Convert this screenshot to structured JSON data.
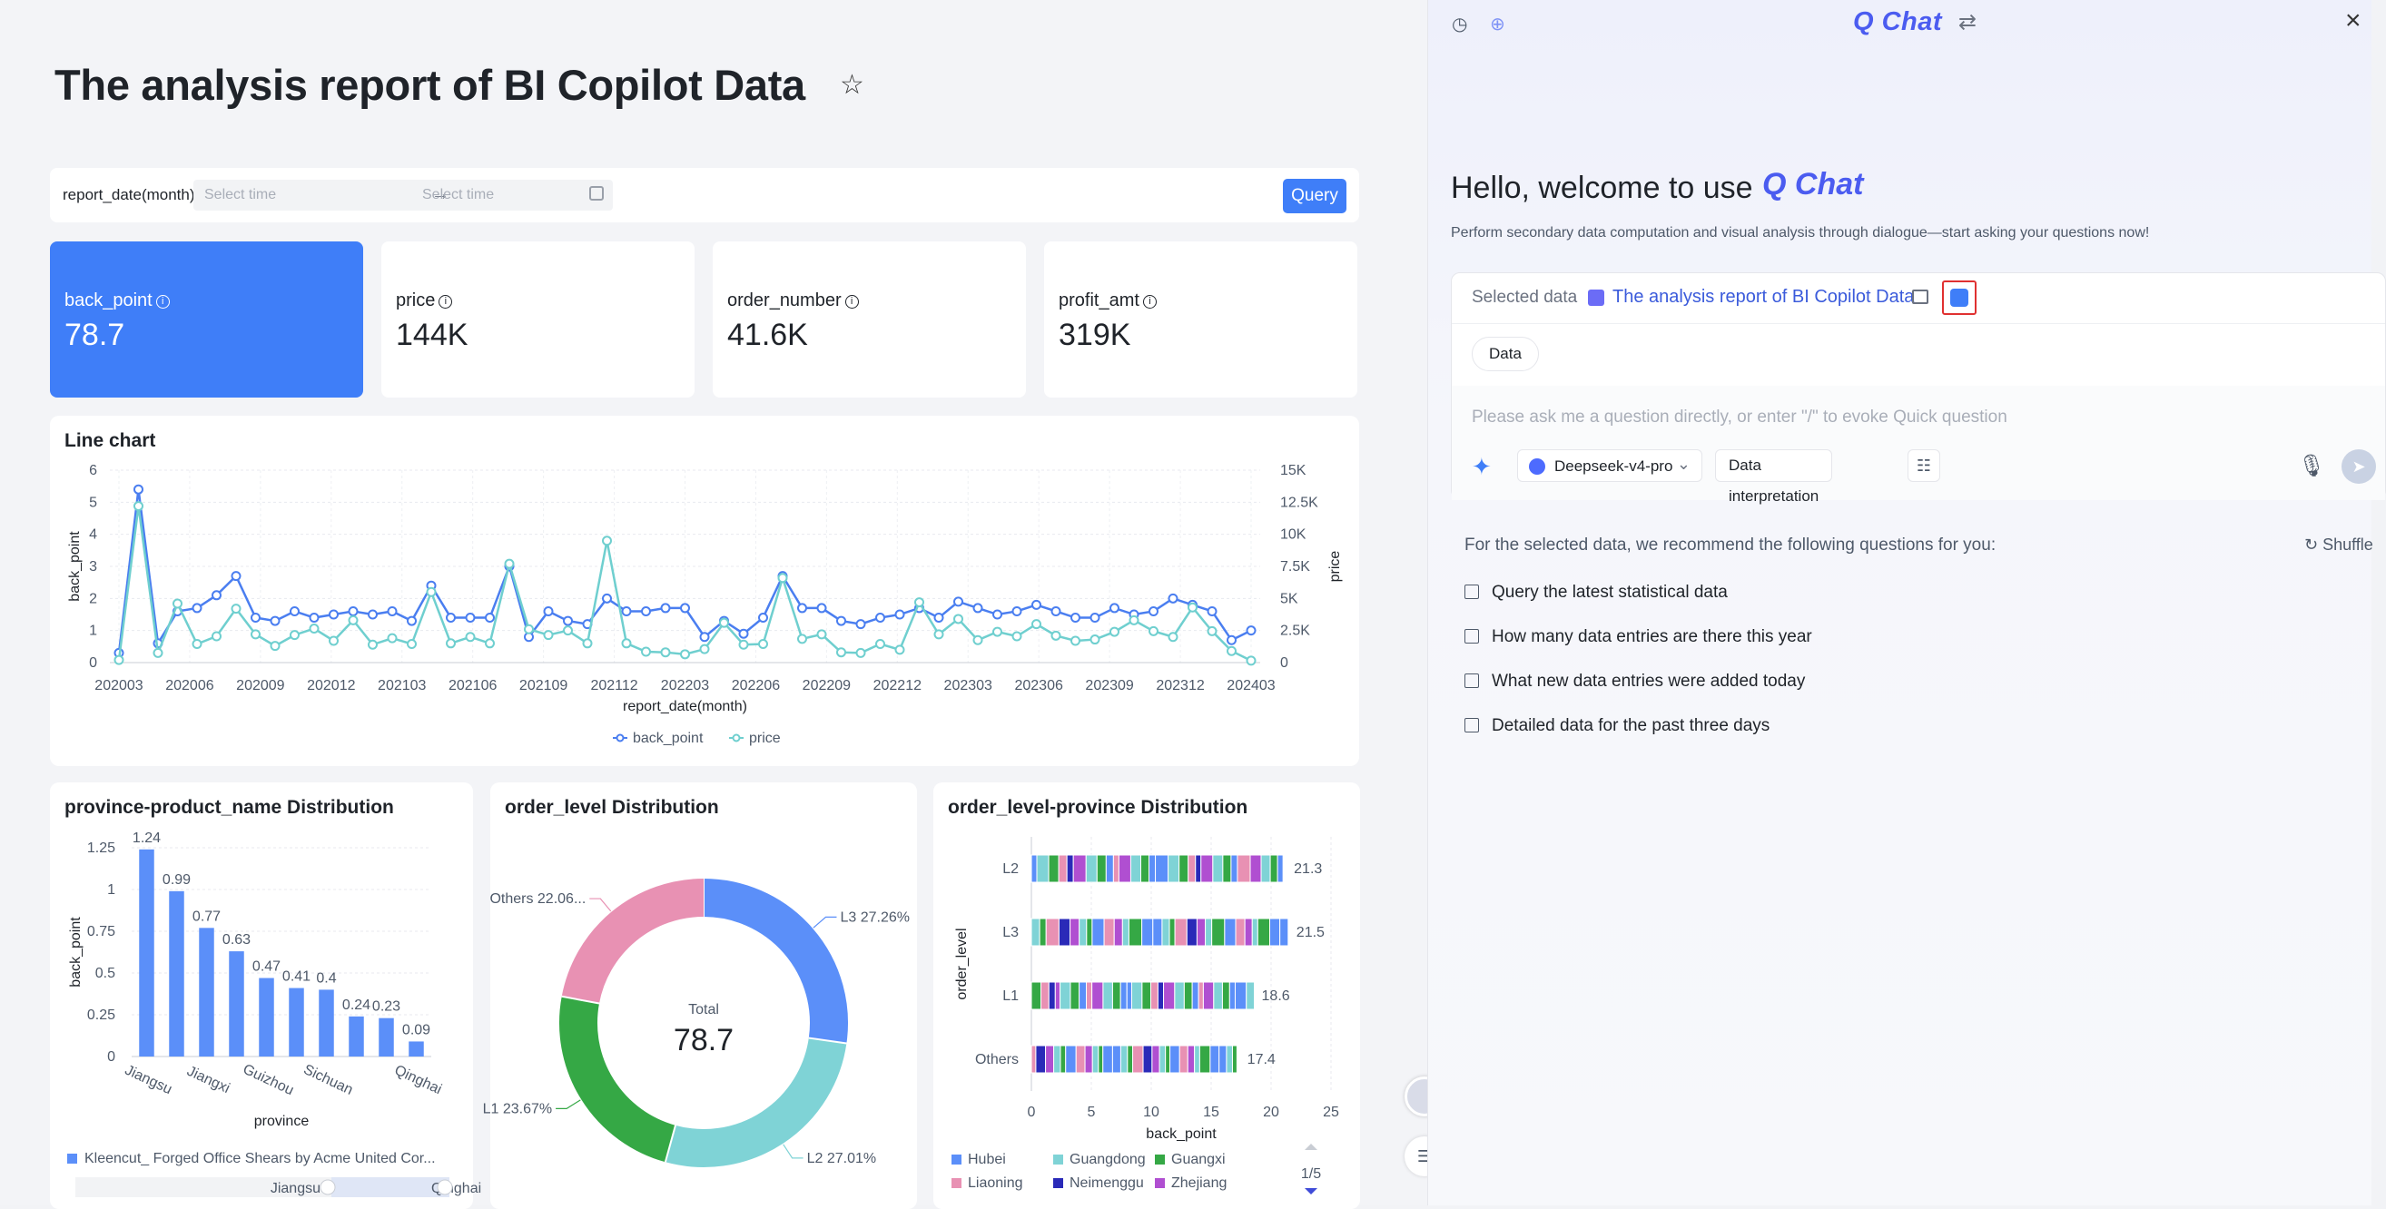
{
  "header": {
    "title": "The analysis report of BI Copilot Data"
  },
  "filter": {
    "label": "report_date(month)",
    "start_placeholder": "Select time",
    "end_placeholder": "Select time",
    "query_label": "Query"
  },
  "kpis": [
    {
      "label": "back_point",
      "value": "78.7"
    },
    {
      "label": "price",
      "value": "144K"
    },
    {
      "label": "order_number",
      "value": "41.6K"
    },
    {
      "label": "profit_amt",
      "value": "319K"
    }
  ],
  "colors": {
    "accent": "#3f7ef8",
    "series_back_point": "#4a7ef0",
    "series_price": "#6fcfcf",
    "pie_L3": "#5b8ff9",
    "pie_L2": "#7fd3d6",
    "pie_L1": "#35a845",
    "pie_Others": "#e891b3"
  },
  "line_card": {
    "title": "Line chart"
  },
  "bar_card": {
    "title": "province-product_name Distribution",
    "legend_label": "Kleencut_ Forged Office Shears by Acme United Cor...",
    "slider_left": "Jiangsu",
    "slider_right": "Qinghai"
  },
  "pie_card": {
    "title": "order_level Distribution",
    "center_label": "Total",
    "center_value": "78.7"
  },
  "stack_card": {
    "title": "order_level-province Distribution",
    "page_indicator": "1/5"
  },
  "chart_data": [
    {
      "type": "line",
      "title": "Line chart",
      "xlabel": "report_date(month)",
      "ylabel": "back_point",
      "y2label": "price",
      "ylim": [
        0,
        6
      ],
      "y2lim": [
        0,
        15000
      ],
      "x_ticks": [
        "202003",
        "202006",
        "202009",
        "202012",
        "202103",
        "202106",
        "202109",
        "202112",
        "202203",
        "202206",
        "202209",
        "202212",
        "202303",
        "202306",
        "202309",
        "202312",
        "202403"
      ],
      "y_ticks": [
        "0",
        "1",
        "2",
        "3",
        "4",
        "5",
        "6"
      ],
      "y2_ticks": [
        "0",
        "2.5K",
        "5K",
        "7.5K",
        "10K",
        "12.5K",
        "15K"
      ],
      "legend": [
        "back_point",
        "price"
      ],
      "legend_position": "bottom",
      "grid": true,
      "series": [
        {
          "name": "back_point",
          "axis": "left",
          "values": [
            0.3,
            5.4,
            0.6,
            1.6,
            1.7,
            2.1,
            2.7,
            1.4,
            1.3,
            1.6,
            1.4,
            1.5,
            1.6,
            1.5,
            1.6,
            1.3,
            2.4,
            1.4,
            1.4,
            1.4,
            3.0,
            0.8,
            1.6,
            1.3,
            1.2,
            2.0,
            1.6,
            1.6,
            1.7,
            1.7,
            0.8,
            1.3,
            0.9,
            1.4,
            2.7,
            1.7,
            1.7,
            1.3,
            1.2,
            1.4,
            1.5,
            1.7,
            1.4,
            1.9,
            1.7,
            1.5,
            1.6,
            1.8,
            1.6,
            1.4,
            1.4,
            1.7,
            1.5,
            1.6,
            2.0,
            1.8,
            1.6,
            0.7,
            1.0
          ]
        },
        {
          "name": "price",
          "axis": "right",
          "values": [
            200,
            12200,
            750,
            4600,
            1450,
            2050,
            4200,
            2200,
            1300,
            2150,
            2650,
            1700,
            3300,
            1400,
            1900,
            1450,
            5500,
            1500,
            2000,
            1500,
            7700,
            2600,
            2150,
            2500,
            1500,
            9500,
            1500,
            850,
            800,
            650,
            1050,
            3100,
            1400,
            1450,
            6600,
            1850,
            2200,
            800,
            750,
            1450,
            1000,
            4700,
            2200,
            3400,
            1750,
            2400,
            2050,
            3000,
            2100,
            1700,
            1800,
            2400,
            3300,
            2450,
            2000,
            4300,
            2450,
            900,
            150
          ]
        }
      ]
    },
    {
      "type": "bar",
      "title": "province-product_name Distribution",
      "xlabel": "province",
      "ylabel": "back_point",
      "ylim": [
        0,
        1.25
      ],
      "y_ticks": [
        "0",
        "0.25",
        "0.5",
        "0.75",
        "1",
        "1.25"
      ],
      "x_tick_labels": [
        "Jiangsu",
        "Jiangxi",
        "Guizhou",
        "Sichuan",
        "Qinghai"
      ],
      "categories": [
        "Jiangsu",
        "",
        "Jiangxi",
        "",
        "Guizhou",
        "",
        "Sichuan",
        "",
        "",
        "Qinghai"
      ],
      "series": [
        {
          "name": "Kleencut_ Forged Office Shears by Acme United Cor...",
          "values": [
            1.24,
            0.99,
            0.77,
            0.63,
            0.47,
            0.41,
            0.4,
            0.24,
            0.23,
            0.09
          ],
          "data_labels": [
            "1.24",
            "0.99",
            "0.77",
            "0.63",
            "0.47",
            "0.41",
            "0.4",
            "0.24",
            "0.23",
            "0.09"
          ]
        }
      ]
    },
    {
      "type": "pie",
      "title": "order_level Distribution",
      "donut": true,
      "total_label": "Total",
      "total_value": "78.7",
      "slices": [
        {
          "label": "L3",
          "percent": 27.26,
          "text": "L3 27.26%"
        },
        {
          "label": "L2",
          "percent": 27.01,
          "text": "L2 27.01%"
        },
        {
          "label": "L1",
          "percent": 23.67,
          "text": "L1 23.67%"
        },
        {
          "label": "Others",
          "percent": 22.06,
          "text": "Others 22.06..."
        }
      ]
    },
    {
      "type": "bar",
      "orientation": "horizontal",
      "stacked": true,
      "title": "order_level-province Distribution",
      "xlabel": "back_point",
      "ylabel": "order_level",
      "xlim": [
        0,
        25
      ],
      "x_ticks": [
        "0",
        "5",
        "10",
        "15",
        "20",
        "25"
      ],
      "categories": [
        "L2",
        "L3",
        "L1",
        "Others"
      ],
      "totals": [
        21.3,
        21.5,
        18.6,
        17.4
      ],
      "total_labels": [
        "21.3",
        "21.5",
        "18.6",
        "17.4"
      ],
      "legend": [
        "Hubei",
        "Guangdong",
        "Guangxi",
        "Liaoning",
        "Neimenggu",
        "Zhejiang"
      ],
      "legend_colors": [
        "#5b8ff9",
        "#7fd3d6",
        "#35a845",
        "#e891b3",
        "#2a2ab8",
        "#b04fd1"
      ]
    }
  ],
  "chat": {
    "logo": "Q Chat",
    "hello": "Hello, welcome to use",
    "subtitle": "Perform secondary data computation and visual analysis through dialogue—start asking your questions now!",
    "selected_label": "Selected data",
    "selected_report": "The analysis report of BI Copilot Data",
    "data_chip": "Data",
    "input_placeholder": "Please ask me a question directly, or enter \"/\" to evoke Quick question",
    "model": "Deepseek-v4-pro",
    "interpretation": "Data interpretation",
    "recommend": "For the selected data, we recommend the following questions for you:",
    "shuffle": "Shuffle",
    "questions": [
      "Query the latest statistical data",
      "How many data entries are there this year",
      "What new data entries were added today",
      "Detailed data for the past three days"
    ]
  }
}
